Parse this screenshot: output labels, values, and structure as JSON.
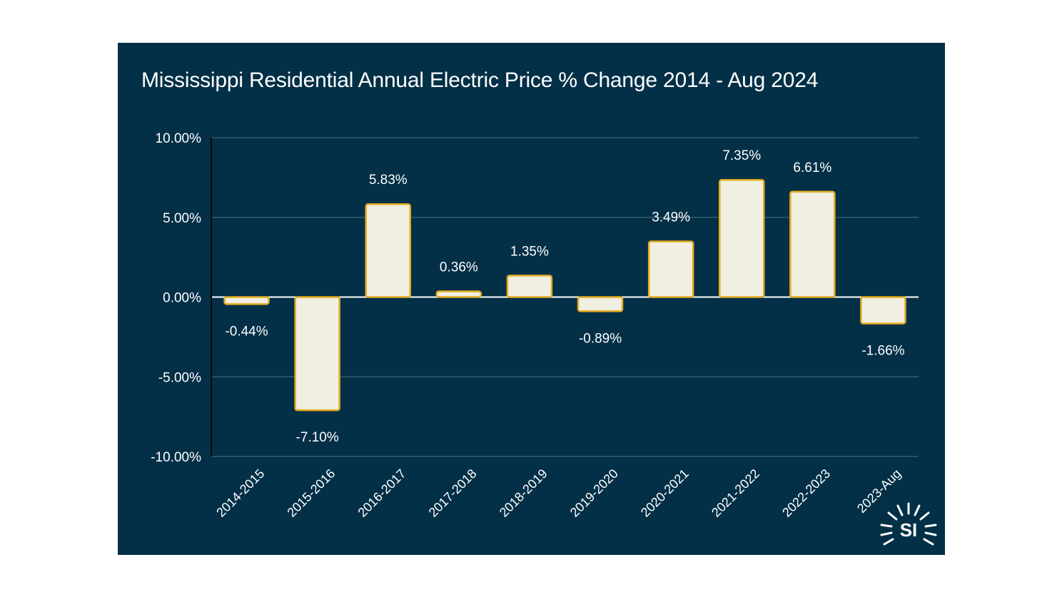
{
  "chart_data": {
    "type": "bar",
    "title": "Mississippi Residential Annual Electric Price % Change 2014 - Aug 2024",
    "xlabel": "",
    "ylabel": "",
    "categories": [
      "2014-2015",
      "2015-2016",
      "2016-2017",
      "2017-2018",
      "2018-2019",
      "2019-2020",
      "2020-2021",
      "2021-2022",
      "2022-2023",
      "2023-Aug"
    ],
    "values": [
      -0.44,
      -7.1,
      5.83,
      0.36,
      1.35,
      -0.89,
      3.49,
      7.35,
      6.61,
      -1.66
    ],
    "data_labels": [
      "-0.44%",
      "-7.10%",
      "5.83%",
      "0.36%",
      "1.35%",
      "-0.89%",
      "3.49%",
      "7.35%",
      "6.61%",
      "-1.66%"
    ],
    "ylim": [
      -10,
      10
    ],
    "yticks": [
      10,
      5,
      0,
      -5,
      -10
    ],
    "ytick_labels": [
      "10.00%",
      "5.00%",
      "0.00%",
      "-5.00%",
      "-10.00%"
    ],
    "grid": true,
    "legend": "none"
  },
  "colors": {
    "background": "#033047",
    "bar_fill": "#f0efe2",
    "bar_stroke": "#e5ac1f",
    "gridline": "#3f6275",
    "text": "#ffffff"
  },
  "logo": {
    "text": "SI",
    "icon": "sunburst-logo-icon"
  }
}
